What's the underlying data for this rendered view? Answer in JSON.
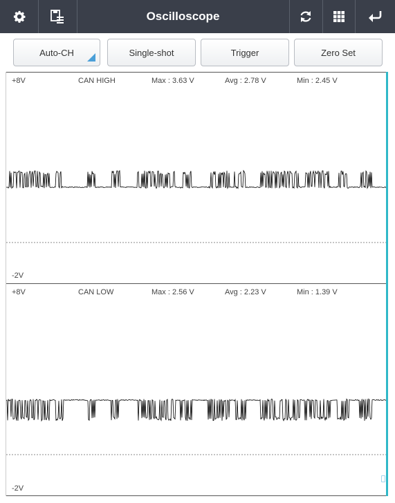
{
  "topbar": {
    "title": "Oscilloscope",
    "icons": [
      "gear-icon",
      "save-list-icon",
      "refresh-icon",
      "grid-icon",
      "back-icon"
    ]
  },
  "toolbar": {
    "auto_ch": "Auto-CH",
    "single_shot": "Single-shot",
    "trigger": "Trigger",
    "zero_set": "Zero Set"
  },
  "channels": [
    {
      "top_label": "+8V",
      "bottom_label": "-2V",
      "name": "CAN HIGH",
      "max": "Max : 3.63 V",
      "avg": "Avg : 2.78 V",
      "min": "Min : 2.45 V"
    },
    {
      "top_label": "+8V",
      "bottom_label": "-2V",
      "name": "CAN LOW",
      "max": "Max : 2.56 V",
      "avg": "Avg : 2.23 V",
      "min": "Min : 1.39 V"
    }
  ],
  "colors": {
    "topbar_bg": "#3a3f4a",
    "accent": "#4a9fd8",
    "edge": "#2fb8c8",
    "trace": "#000000"
  }
}
